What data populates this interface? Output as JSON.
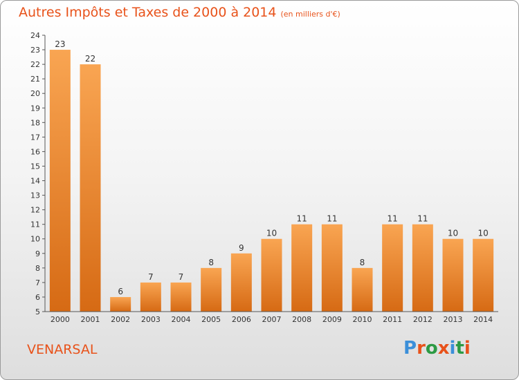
{
  "header": {
    "title": "Autres Impôts et Taxes de 2000 à 2014",
    "unit": "(en milliers d'€)"
  },
  "footer": {
    "commune": "VENARSAL",
    "logo_text": "Proxiti"
  },
  "colors": {
    "accent": "#e8521a",
    "bar_light": "#f9a552",
    "bar_dark": "#d66a14",
    "logo": [
      "#3b8fd9",
      "#e8521a",
      "#2c9a44",
      "#e8521a",
      "#3b8fd9",
      "#2c9a44",
      "#e8521a"
    ]
  },
  "chart_data": {
    "type": "bar",
    "title": "Autres Impôts et Taxes de 2000 à 2014",
    "unit": "(en milliers d'€)",
    "categories": [
      "2000",
      "2001",
      "2002",
      "2003",
      "2004",
      "2005",
      "2006",
      "2007",
      "2008",
      "2009",
      "2010",
      "2011",
      "2012",
      "2013",
      "2014"
    ],
    "values": [
      23,
      22,
      6,
      7,
      7,
      8,
      9,
      10,
      11,
      11,
      8,
      11,
      11,
      10,
      10
    ],
    "ylim": [
      5,
      24
    ],
    "yticks": [
      5,
      6,
      7,
      8,
      9,
      10,
      11,
      12,
      13,
      14,
      15,
      16,
      17,
      18,
      19,
      20,
      21,
      22,
      23,
      24
    ],
    "xlabel": "",
    "ylabel": "",
    "grid": false,
    "data_labels": true
  }
}
